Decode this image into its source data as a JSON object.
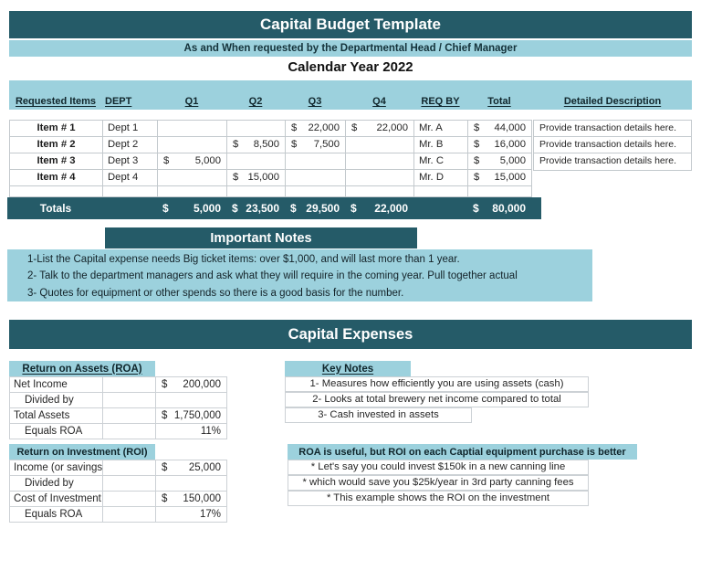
{
  "header": {
    "title": "Capital Budget Template",
    "subtitle": "As and When requested by the Departmental Head / Chief Manager",
    "year": "Calendar Year 2022"
  },
  "budget": {
    "currency": "$",
    "headers": [
      "Requested Items",
      "DEPT",
      "Q1",
      "Q2",
      "Q3",
      "Q4",
      "REQ BY",
      "Total",
      "Detailed Description"
    ],
    "rows": [
      {
        "item": "Item # 1",
        "dept": "Dept 1",
        "q1": "",
        "q2": "",
        "q3": "22,000",
        "q4": "22,000",
        "req_by": "Mr. A",
        "total": "44,000",
        "description": "Provide transaction details here."
      },
      {
        "item": "Item # 2",
        "dept": "Dept 2",
        "q1": "",
        "q2": "8,500",
        "q3": "7,500",
        "q4": "",
        "req_by": "Mr. B",
        "total": "16,000",
        "description": "Provide transaction details here."
      },
      {
        "item": "Item # 3",
        "dept": "Dept 3",
        "q1": "5,000",
        "q2": "",
        "q3": "",
        "q4": "",
        "req_by": "Mr. C",
        "total": "5,000",
        "description": "Provide transaction details here."
      },
      {
        "item": "Item # 4",
        "dept": "Dept 4",
        "q1": "",
        "q2": "15,000",
        "q3": "",
        "q4": "",
        "req_by": "Mr. D",
        "total": "15,000",
        "description": ""
      }
    ],
    "totals": {
      "label": "Totals",
      "q1": "5,000",
      "q2": "23,500",
      "q3": "29,500",
      "q4": "22,000",
      "total": "80,000"
    }
  },
  "important_notes": {
    "title": "Important Notes",
    "lines": [
      "1-List the Capital expense needs Big ticket items: over $1,000, and will last more than 1 year.",
      "2- Talk to the department managers and ask what they will require in the coming year. Pull together actual",
      "3- Quotes for equipment or other spends so there is a good basis for the number."
    ]
  },
  "capital_expenses": {
    "title": "Capital Expenses",
    "roa": {
      "title": "Return on Assets (ROA)",
      "rows": [
        {
          "label": "Net Income",
          "currency": "$",
          "value": "200,000"
        },
        {
          "label": "Divided by",
          "currency": "",
          "value": ""
        },
        {
          "label": "Total Assets",
          "currency": "$",
          "value": "1,750,000"
        },
        {
          "label": "Equals ROA",
          "currency": "",
          "value": "11%"
        }
      ]
    },
    "key_notes": {
      "title": "Key Notes",
      "lines": [
        "1- Measures how efficiently you are using assets (cash)",
        "2- Looks at total brewery net income compared to total",
        "3- Cash invested in assets"
      ]
    },
    "roi": {
      "title": "Return on Investment (ROI)",
      "rows": [
        {
          "label": "Income (or savings)",
          "currency": "$",
          "value": "25,000"
        },
        {
          "label": "Divided by",
          "currency": "",
          "value": ""
        },
        {
          "label": "Cost of Investment",
          "currency": "$",
          "value": "150,000"
        },
        {
          "label": "Equals ROA",
          "currency": "",
          "value": "17%"
        }
      ]
    },
    "roi_note": {
      "title": "ROA is useful, but ROI on each Captial equipment purchase is better",
      "lines": [
        "* Let's say you could invest $150k in a new canning line",
        "* which would save you $25k/year in 3rd party canning fees",
        "* This example shows the ROI on the investment"
      ]
    }
  },
  "colors": {
    "dark_teal": "#255B68",
    "light_blue": "#9CD1DD"
  }
}
